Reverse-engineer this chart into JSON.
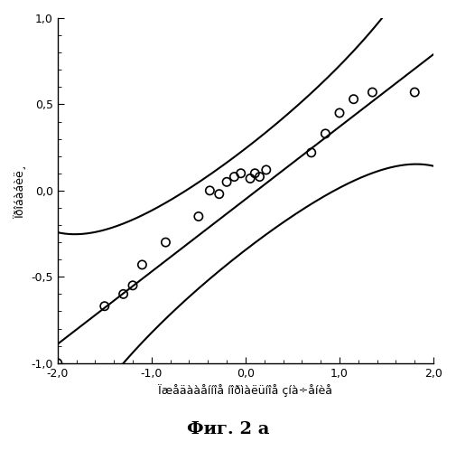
{
  "xlabel": "Ïæåäààåííîå íîðìàëüíîå çíà÷åíèå",
  "ylabel": "Ïðîáàáèë¸",
  "xlabel_display": "Ïæåäààåííîå íîðìàëüíîå çíà÷åíèå",
  "fig_label": "Фиг. 2 а",
  "scatter_x": [
    -2.0,
    -1.5,
    -1.3,
    -1.2,
    -1.1,
    -0.85,
    -0.5,
    -0.38,
    -0.28,
    -0.2,
    -0.12,
    -0.05,
    0.05,
    0.1,
    0.15,
    0.22,
    0.7,
    0.85,
    1.0,
    1.15,
    1.35,
    1.8
  ],
  "scatter_y": [
    -1.0,
    -0.67,
    -0.6,
    -0.55,
    -0.43,
    -0.3,
    -0.15,
    0.0,
    -0.02,
    0.05,
    0.08,
    0.1,
    0.07,
    0.1,
    0.08,
    0.12,
    0.22,
    0.33,
    0.45,
    0.53,
    0.57,
    0.57
  ],
  "xlim": [
    -2.0,
    2.0
  ],
  "ylim": [
    -1.0,
    1.0
  ],
  "xticks": [
    -2.0,
    -1.0,
    0.0,
    1.0,
    2.0
  ],
  "yticks": [
    -1.0,
    -0.5,
    0.0,
    0.5,
    1.0
  ],
  "background_color": "#ffffff",
  "line_color": "#000000",
  "scatter_color": "none",
  "scatter_edgecolor": "#000000",
  "n_points": 22,
  "mid_slope": 0.42,
  "mid_intercept": -0.05,
  "band_se": 0.38
}
